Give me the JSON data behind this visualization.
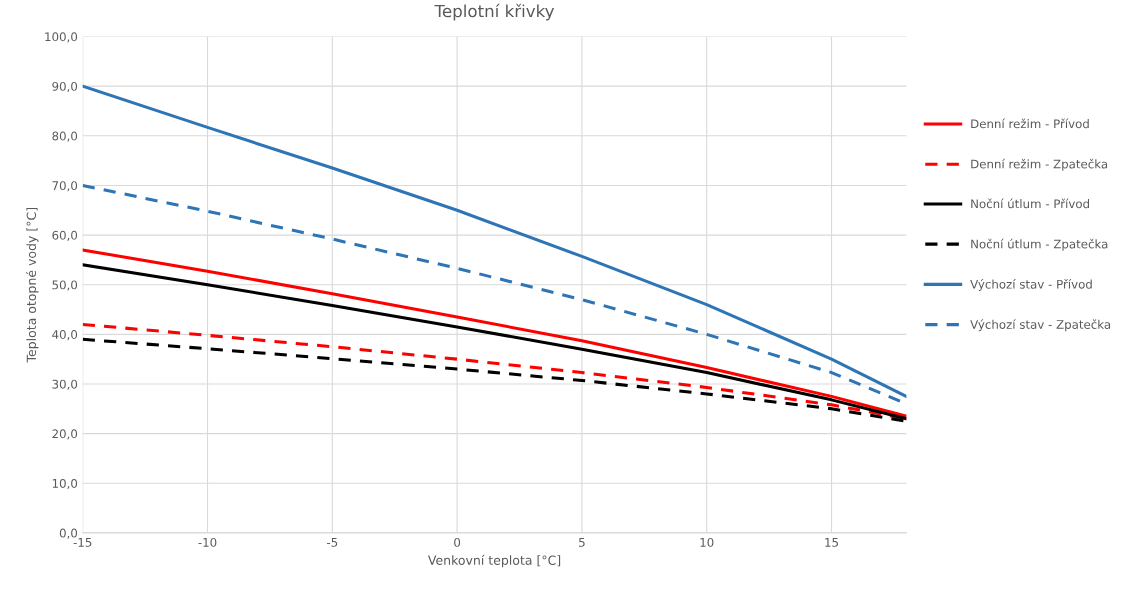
{
  "chart_data": {
    "type": "line",
    "title": "Teplotní křivky",
    "xlabel": "Venkovní teplota [°C]",
    "ylabel": "Teplota otopné vody [°C]",
    "x": [
      -15,
      -10,
      -5,
      0,
      5,
      10,
      15,
      18
    ],
    "series": [
      {
        "name": "Denní režim - Přívod",
        "color": "#ff0000",
        "line_style": "solid",
        "values": [
          57,
          52.7,
          48.2,
          43.5,
          38.7,
          33.3,
          27.5,
          23.5
        ]
      },
      {
        "name": "Denní režim - Zpatečka",
        "color": "#ff0000",
        "line_style": "dashed",
        "values": [
          42,
          39.8,
          37.5,
          35,
          32.3,
          29.3,
          25.8,
          23
        ]
      },
      {
        "name": "Noční útlum - Přívod",
        "color": "#000000",
        "line_style": "solid",
        "values": [
          54,
          50,
          45.8,
          41.5,
          37,
          32.3,
          26.8,
          23
        ]
      },
      {
        "name": "Noční útlum - Zpatečka",
        "color": "#000000",
        "line_style": "dashed",
        "values": [
          39,
          37.1,
          35.1,
          33,
          30.7,
          28,
          25,
          22.5
        ]
      },
      {
        "name": "Výchozí stav - Přívod",
        "color": "#2e75b6",
        "line_style": "solid",
        "values": [
          90,
          81.7,
          73.5,
          65,
          55.7,
          46,
          35,
          27.5
        ]
      },
      {
        "name": "Výchozí stav - Zpatečka",
        "color": "#2e75b6",
        "line_style": "dashed",
        "values": [
          70,
          64.8,
          59.2,
          53.3,
          47,
          40,
          32.3,
          26
        ]
      }
    ],
    "xlim": [
      -15,
      18
    ],
    "xticks": [
      -15,
      -10,
      -5,
      0,
      5,
      10,
      15
    ],
    "ylim": [
      0,
      100
    ],
    "yticks": [
      {
        "value": 0,
        "label": "0,0"
      },
      {
        "value": 10,
        "label": "10,0"
      },
      {
        "value": 20,
        "label": "20,0"
      },
      {
        "value": 30,
        "label": "30,0"
      },
      {
        "value": 40,
        "label": "40,0"
      },
      {
        "value": 50,
        "label": "50,0"
      },
      {
        "value": 60,
        "label": "60,0"
      },
      {
        "value": 70,
        "label": "70,0"
      },
      {
        "value": 80,
        "label": "80,0"
      },
      {
        "value": 90,
        "label": "90,0"
      },
      {
        "value": 100,
        "label": "100,0"
      }
    ],
    "grid": true,
    "legend": "right",
    "marker": "none"
  }
}
